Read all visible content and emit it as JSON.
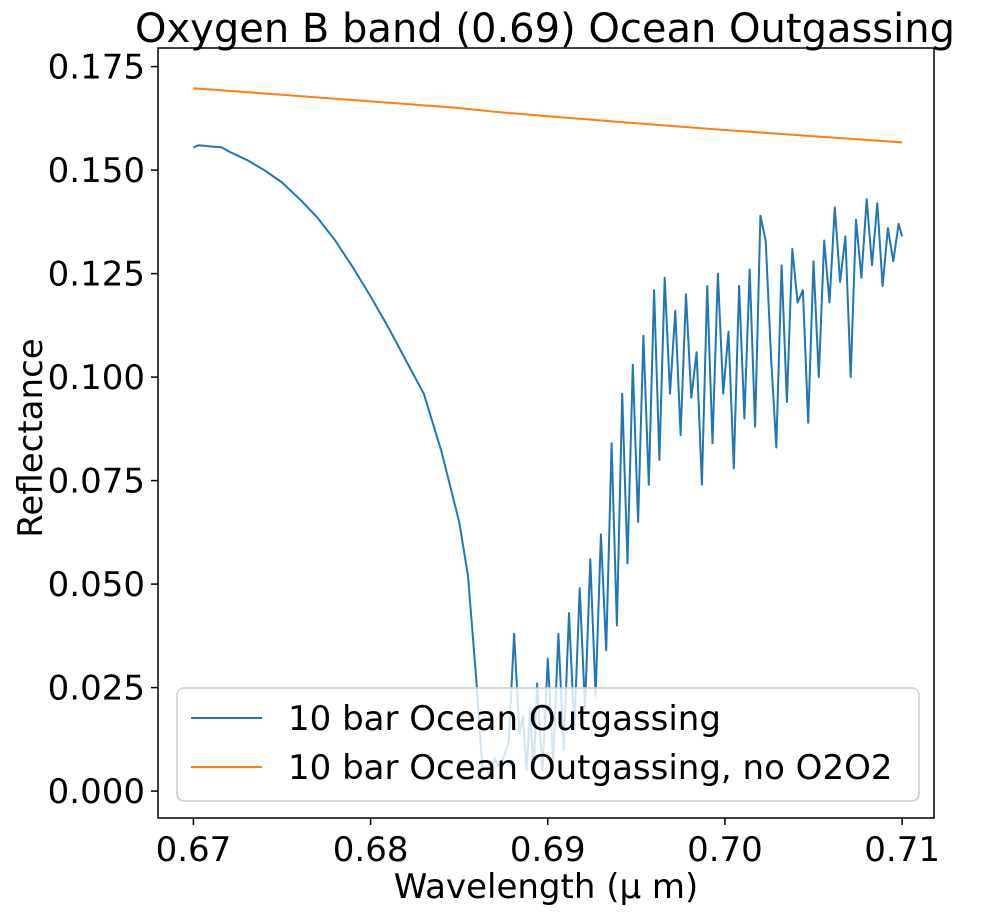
{
  "chart_data": {
    "type": "line",
    "title": "Oxygen B band (0.69) Ocean Outgassing",
    "xlabel": "Wavelength (μ m)",
    "ylabel": "Reflectance",
    "xlim": [
      0.668,
      0.7118
    ],
    "ylim": [
      -0.0065,
      0.1795
    ],
    "x_ticks": [
      0.67,
      0.68,
      0.69,
      0.7,
      0.71
    ],
    "x_tick_labels": [
      "0.67",
      "0.68",
      "0.69",
      "0.70",
      "0.71"
    ],
    "y_ticks": [
      0.0,
      0.025,
      0.05,
      0.075,
      0.1,
      0.125,
      0.15,
      0.175
    ],
    "y_tick_labels": [
      "0.000",
      "0.025",
      "0.050",
      "0.075",
      "0.100",
      "0.125",
      "0.150",
      "0.175"
    ],
    "grid": false,
    "legend_position": "lower-right",
    "series": [
      {
        "name": "10 bar Ocean Outgassing",
        "color": "#1f77b4",
        "x": [
          0.67,
          0.6703,
          0.671,
          0.6716,
          0.672,
          0.673,
          0.674,
          0.675,
          0.676,
          0.677,
          0.678,
          0.679,
          0.68,
          0.681,
          0.682,
          0.683,
          0.684,
          0.685,
          0.6855,
          0.686,
          0.6863,
          0.6866,
          0.6868,
          0.687,
          0.6872,
          0.6875,
          0.6878,
          0.6881,
          0.6884,
          0.6886,
          0.6888,
          0.689,
          0.6892,
          0.6894,
          0.6897,
          0.69,
          0.6903,
          0.6906,
          0.6909,
          0.6912,
          0.6915,
          0.6918,
          0.6921,
          0.6924,
          0.6927,
          0.693,
          0.6933,
          0.6936,
          0.6939,
          0.6942,
          0.6945,
          0.6948,
          0.6951,
          0.6954,
          0.6957,
          0.696,
          0.6963,
          0.6966,
          0.6969,
          0.6972,
          0.6975,
          0.6978,
          0.6981,
          0.6984,
          0.6987,
          0.699,
          0.6993,
          0.6996,
          0.6999,
          0.7002,
          0.7005,
          0.7008,
          0.7011,
          0.7014,
          0.7017,
          0.702,
          0.7023,
          0.7026,
          0.7029,
          0.7032,
          0.7035,
          0.7038,
          0.7041,
          0.7044,
          0.7047,
          0.705,
          0.7053,
          0.7056,
          0.7059,
          0.7062,
          0.7065,
          0.7068,
          0.7071,
          0.7074,
          0.7077,
          0.708,
          0.7083,
          0.7086,
          0.7089,
          0.7092,
          0.7095,
          0.7098,
          0.71
        ],
        "values": [
          0.1555,
          0.156,
          0.1557,
          0.1555,
          0.1545,
          0.1525,
          0.15,
          0.147,
          0.143,
          0.1385,
          0.133,
          0.1265,
          0.1195,
          0.112,
          0.104,
          0.096,
          0.082,
          0.065,
          0.052,
          0.025,
          0.006,
          0.005,
          0.003,
          0.008,
          0.006,
          0.008,
          0.012,
          0.038,
          0.014,
          0.018,
          0.005,
          0.02,
          0.004,
          0.026,
          0.005,
          0.032,
          0.007,
          0.038,
          0.01,
          0.043,
          0.015,
          0.049,
          0.02,
          0.056,
          0.023,
          0.062,
          0.034,
          0.084,
          0.04,
          0.096,
          0.055,
          0.103,
          0.065,
          0.11,
          0.074,
          0.121,
          0.08,
          0.124,
          0.096,
          0.116,
          0.086,
          0.12,
          0.095,
          0.106,
          0.074,
          0.122,
          0.084,
          0.125,
          0.096,
          0.111,
          0.078,
          0.122,
          0.09,
          0.126,
          0.088,
          0.139,
          0.133,
          0.105,
          0.083,
          0.127,
          0.094,
          0.131,
          0.118,
          0.121,
          0.089,
          0.128,
          0.1,
          0.133,
          0.118,
          0.141,
          0.123,
          0.134,
          0.1,
          0.138,
          0.124,
          0.143,
          0.127,
          0.142,
          0.122,
          0.136,
          0.128,
          0.137,
          0.134
        ]
      },
      {
        "name": "10 bar Ocean Outgassing, no O2O2",
        "color": "#ff7f0e",
        "x": [
          0.67,
          0.675,
          0.68,
          0.685,
          0.687,
          0.69,
          0.695,
          0.7,
          0.705,
          0.71
        ],
        "values": [
          0.1698,
          0.1682,
          0.1666,
          0.165,
          0.1641,
          0.163,
          0.1613,
          0.1597,
          0.1582,
          0.1567
        ]
      }
    ]
  }
}
